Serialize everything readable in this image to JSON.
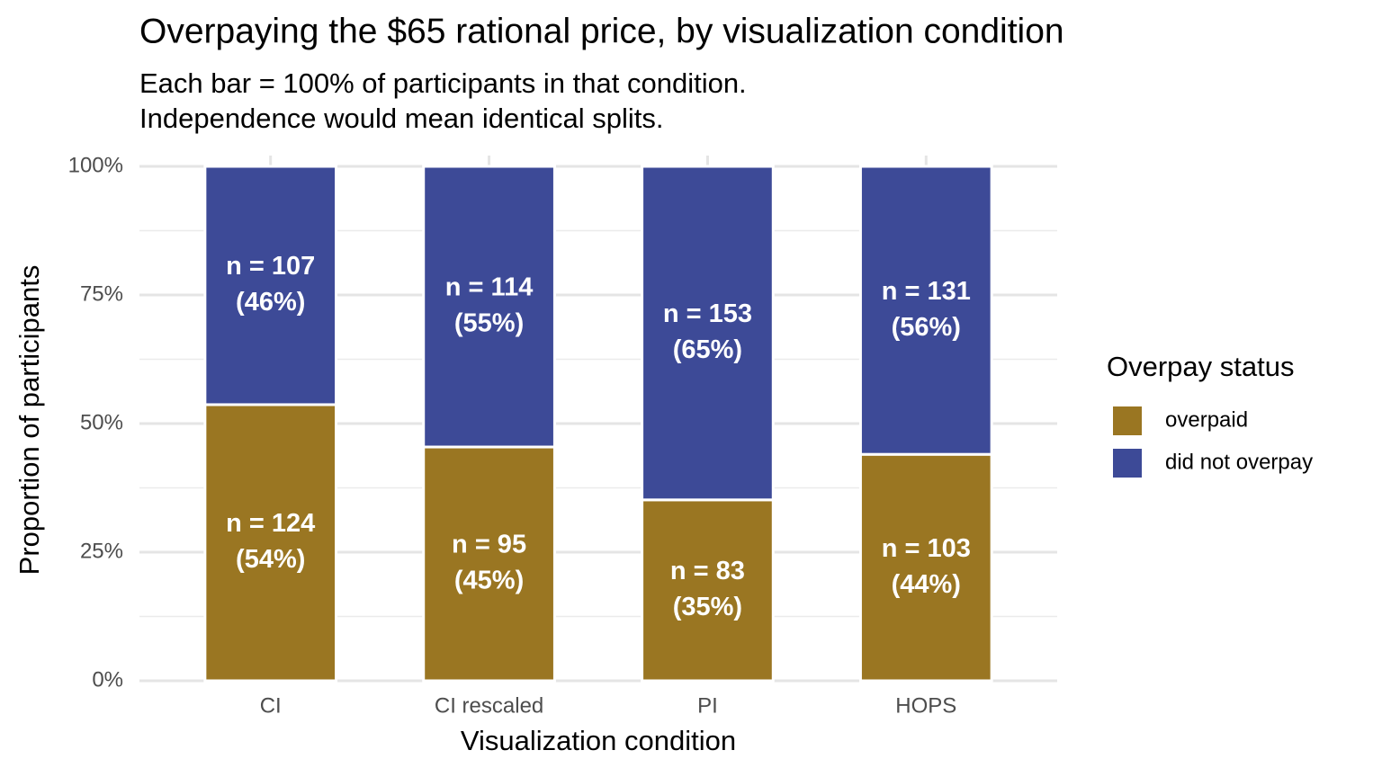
{
  "chart_data": {
    "type": "stacked_bar_100",
    "title": "Overpaying the $65 rational price, by visualization condition",
    "subtitle": [
      "Each bar = 100% of participants in that condition.",
      "Independence would mean identical splits."
    ],
    "x_label": "Visualization condition",
    "y_label": "Proportion of participants",
    "categories": [
      "CI",
      "CI rescaled",
      "PI",
      "HOPS"
    ],
    "series": [
      {
        "name": "overpaid",
        "color": "#9a7622",
        "values": [
          53.68,
          45.45,
          35.17,
          44.02
        ],
        "value_labels": [
          [
            "n = 124",
            "(54%)"
          ],
          [
            "n = 95",
            "(45%)"
          ],
          [
            "n = 83",
            "(35%)"
          ],
          [
            "n = 103",
            "(44%)"
          ]
        ]
      },
      {
        "name": "did not overpay",
        "color": "#3d4a97",
        "values": [
          46.32,
          54.55,
          64.83,
          55.98
        ],
        "value_labels": [
          [
            "n = 107",
            "(46%)"
          ],
          [
            "n = 114",
            "(55%)"
          ],
          [
            "n = 153",
            "(65%)"
          ],
          [
            "n = 131",
            "(56%)"
          ]
        ]
      }
    ],
    "ylim": [
      0,
      100
    ],
    "yticks": [
      {
        "value": 0,
        "label": "0%"
      },
      {
        "value": 25,
        "label": "25%"
      },
      {
        "value": 50,
        "label": "50%"
      },
      {
        "value": 75,
        "label": "75%"
      },
      {
        "value": 100,
        "label": "100%"
      }
    ],
    "y_minor_ticks": [
      12.5,
      37.5,
      62.5,
      87.5
    ],
    "grid": true,
    "legend_title": "Overpay status",
    "legend_position": "right"
  }
}
